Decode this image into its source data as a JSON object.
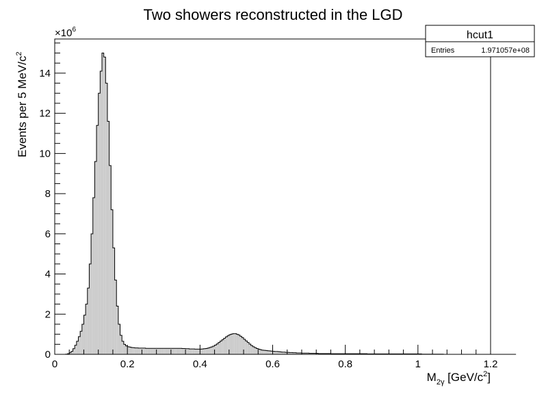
{
  "chart_data": {
    "type": "bar",
    "title": "Two showers reconstructed in the LGD",
    "xlabel": {
      "base": "M",
      "sub": "2γ",
      "unit_open": " [GeV/c",
      "sup": "2",
      "unit_close": "]"
    },
    "ylabel": {
      "text": "Events per 5 MeV/c",
      "sup": "2"
    },
    "y_multiplier": {
      "base": "×10",
      "exp": "6"
    },
    "xlim": [
      0,
      1.2
    ],
    "ylim": [
      0,
      15.7
    ],
    "x_ticks": [
      0,
      0.2,
      0.4,
      0.6,
      0.8,
      1,
      1.2
    ],
    "x_tick_labels": [
      "0",
      "0.2",
      "0.4",
      "0.6",
      "0.8",
      "1",
      "1.2"
    ],
    "y_ticks": [
      0,
      2,
      4,
      6,
      8,
      10,
      12,
      14
    ],
    "y_tick_labels": [
      "0",
      "2",
      "4",
      "6",
      "8",
      "10",
      "12",
      "14"
    ],
    "bin_width": 0.005,
    "bin_start": 0,
    "values": [
      0,
      0,
      0,
      0,
      0,
      0,
      0.01,
      0.03,
      0.08,
      0.15,
      0.28,
      0.45,
      0.65,
      0.88,
      1.15,
      1.5,
      1.95,
      2.5,
      3.3,
      4.5,
      6.0,
      7.8,
      9.6,
      11.4,
      13.0,
      14.1,
      15.0,
      14.8,
      13.5,
      11.6,
      9.4,
      7.2,
      5.3,
      3.7,
      2.4,
      1.5,
      0.95,
      0.65,
      0.5,
      0.42,
      0.38,
      0.36,
      0.34,
      0.33,
      0.32,
      0.32,
      0.31,
      0.31,
      0.31,
      0.31,
      0.3,
      0.3,
      0.3,
      0.3,
      0.3,
      0.3,
      0.3,
      0.3,
      0.3,
      0.3,
      0.3,
      0.3,
      0.3,
      0.3,
      0.3,
      0.3,
      0.3,
      0.3,
      0.3,
      0.3,
      0.29,
      0.29,
      0.28,
      0.28,
      0.27,
      0.27,
      0.27,
      0.26,
      0.26,
      0.26,
      0.26,
      0.27,
      0.28,
      0.29,
      0.31,
      0.34,
      0.37,
      0.41,
      0.46,
      0.52,
      0.59,
      0.66,
      0.73,
      0.8,
      0.87,
      0.93,
      0.98,
      1.01,
      1.03,
      1.03,
      1.0,
      0.96,
      0.9,
      0.83,
      0.75,
      0.67,
      0.59,
      0.51,
      0.44,
      0.38,
      0.33,
      0.29,
      0.26,
      0.23,
      0.21,
      0.2,
      0.19,
      0.18,
      0.17,
      0.16,
      0.15,
      0.14,
      0.14,
      0.13,
      0.12,
      0.11,
      0.11,
      0.1,
      0.1,
      0.09,
      0.09,
      0.08,
      0.08,
      0.07,
      0.07,
      0.07,
      0.06,
      0.06,
      0.06,
      0.06,
      0.05,
      0.05,
      0.05,
      0.05,
      0.05,
      0.04,
      0.04,
      0.04,
      0.04,
      0.04,
      0.04,
      0.04,
      0.03,
      0.03,
      0.03,
      0.03,
      0.03,
      0.03,
      0.03,
      0.03,
      0.03,
      0.03,
      0.03,
      0.03,
      0.03,
      0.03,
      0.03,
      0.03,
      0.03,
      0.03,
      0.03,
      0.03,
      0.02,
      0.02,
      0.02,
      0.02,
      0.02,
      0.02,
      0.02,
      0.02,
      0.02,
      0.02,
      0.02,
      0.02,
      0.02,
      0.02,
      0.02,
      0.02,
      0.02,
      0.02,
      0.02,
      0.02,
      0.02,
      0.02,
      0.02,
      0.02,
      0.02,
      0.02,
      0.02,
      0.02,
      0.02,
      0.02,
      0.01,
      0.01,
      0.01,
      0.01,
      0.01,
      0.01,
      0.01,
      0.01,
      0.01,
      0.01,
      0.01,
      0.01,
      0.0,
      0.0,
      0.0,
      0.0,
      0.0,
      0.0,
      0.0,
      0.0,
      0.0,
      0.0,
      0.0,
      0.0,
      0.0,
      0.0,
      0.0,
      0.0,
      0.0,
      0.0,
      0.0,
      0.0,
      0.0,
      0.0,
      0.0,
      0.0,
      0.0,
      0.0,
      0.0,
      0.0,
      0.0,
      0.0,
      0.0,
      0.0,
      0.0,
      0.0,
      0.0,
      0.0,
      0.0,
      0.0,
      0.0,
      0.0
    ],
    "stats_box": {
      "title": "hcut1",
      "entries_label": "Entries",
      "entries_value": "1.971057e+08"
    },
    "colors": {
      "fill": "#cccccc",
      "line": "#000000",
      "background": "#ffffff"
    },
    "grid": false,
    "legend_position": "top-right"
  }
}
